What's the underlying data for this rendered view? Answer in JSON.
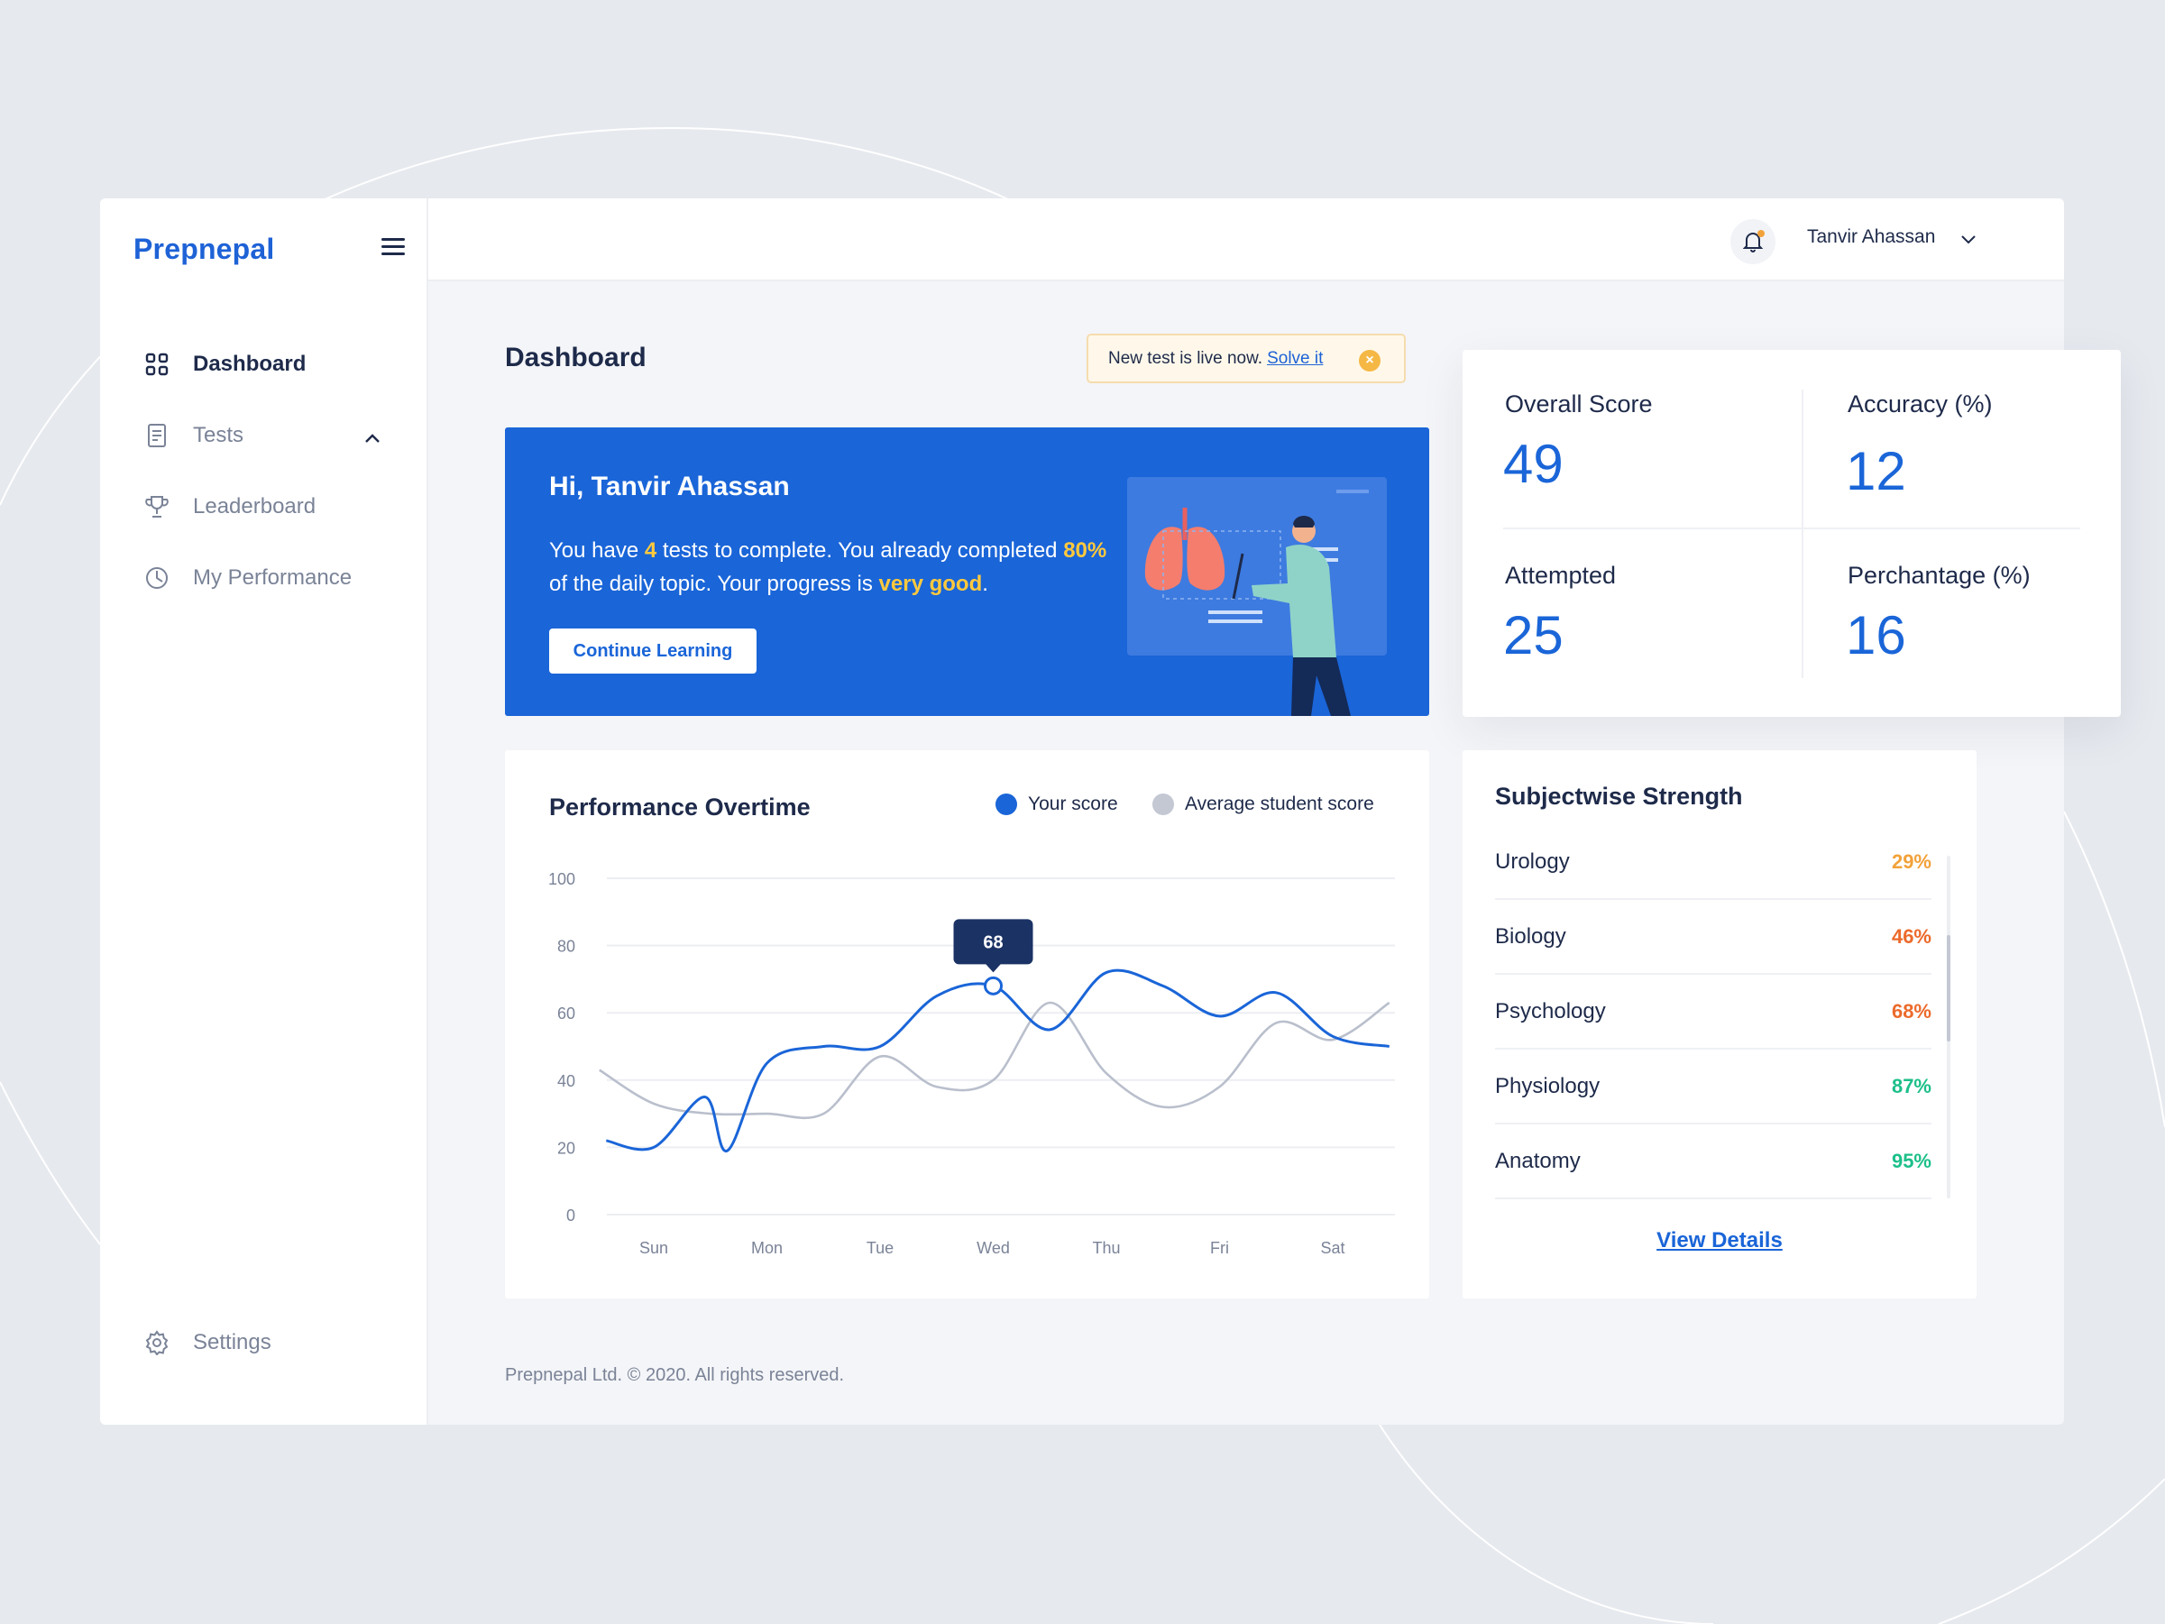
{
  "app": {
    "brand": "Prepnepal"
  },
  "sidebar": {
    "items": [
      {
        "label": "Dashboard",
        "icon": "grid-icon",
        "active": true
      },
      {
        "label": "Tests",
        "icon": "document-icon",
        "expanded": true
      },
      {
        "label": "Leaderboard",
        "icon": "trophy-icon"
      },
      {
        "label": "My Performance",
        "icon": "pie-chart-icon"
      }
    ],
    "settings": {
      "label": "Settings",
      "icon": "gear-icon"
    }
  },
  "header": {
    "user_name": "Tanvir Ahassan"
  },
  "page": {
    "title": "Dashboard"
  },
  "notice": {
    "text": "New test is live now.",
    "link": "Solve it"
  },
  "hero": {
    "greeting": "Hi, Tanvir Ahassan",
    "msg_part1": "You have ",
    "tests_count": "4",
    "msg_part2": " tests to complete. You already completed ",
    "completed_pct": "80%",
    "msg_part3": " of the daily topic. Your progress is ",
    "progress_word": "very good",
    "msg_part4": ".",
    "cta": "Continue Learning"
  },
  "stats": [
    {
      "label": "Overall Score",
      "value": "49"
    },
    {
      "label": "Accuracy (%)",
      "value": "12"
    },
    {
      "label": "Attempted",
      "value": "25"
    },
    {
      "label": "Perchantage (%)",
      "value": "16"
    }
  ],
  "performance": {
    "title": "Performance Overtime",
    "legend_your": "Your score",
    "legend_avg": "Average student score",
    "tooltip": "68"
  },
  "chart_data": {
    "type": "line",
    "categories": [
      "Sun",
      "Mon",
      "Tue",
      "Wed",
      "Thu",
      "Fri",
      "Sat"
    ],
    "ylim": [
      0,
      100
    ],
    "yticks": [
      0,
      20,
      40,
      60,
      80,
      100
    ],
    "grid": true,
    "legend": "top-right",
    "series": [
      {
        "name": "Your score",
        "color": "#1a65d8",
        "x": [
          -0.42,
          0,
          0.45,
          0.65,
          1,
          1.5,
          2,
          2.5,
          3,
          3.5,
          4,
          4.5,
          5,
          5.5,
          6,
          6.5
        ],
        "y": [
          22,
          20,
          35,
          19,
          45,
          50,
          50,
          65,
          68,
          55,
          72,
          68,
          59,
          66,
          53,
          50
        ]
      },
      {
        "name": "Average student score",
        "color": "#b9bfcc",
        "x": [
          -0.48,
          0,
          0.5,
          1,
          1.5,
          2,
          2.5,
          3,
          3.5,
          4,
          4.5,
          5,
          5.5,
          6,
          6.5
        ],
        "y": [
          43,
          33,
          30,
          30,
          30,
          47,
          38,
          40,
          63,
          42,
          32,
          38,
          57,
          52,
          63
        ]
      }
    ],
    "highlight": {
      "series": "Your score",
      "x": 3,
      "y": 68,
      "label": "68"
    }
  },
  "subjects": {
    "title": "Subjectwise Strength",
    "items": [
      {
        "name": "Urology",
        "pct": "29%",
        "color": "#f2a23a"
      },
      {
        "name": "Biology",
        "pct": "46%",
        "color": "#ec6a2b"
      },
      {
        "name": "Psychology",
        "pct": "68%",
        "color": "#ec6a2b"
      },
      {
        "name": "Physiology",
        "pct": "87%",
        "color": "#1cbf8a"
      },
      {
        "name": "Anatomy",
        "pct": "95%",
        "color": "#1cbf8a"
      }
    ],
    "view_details": "View Details"
  },
  "footer": {
    "text": "Prepnepal Ltd. © 2020. All rights reserved."
  }
}
